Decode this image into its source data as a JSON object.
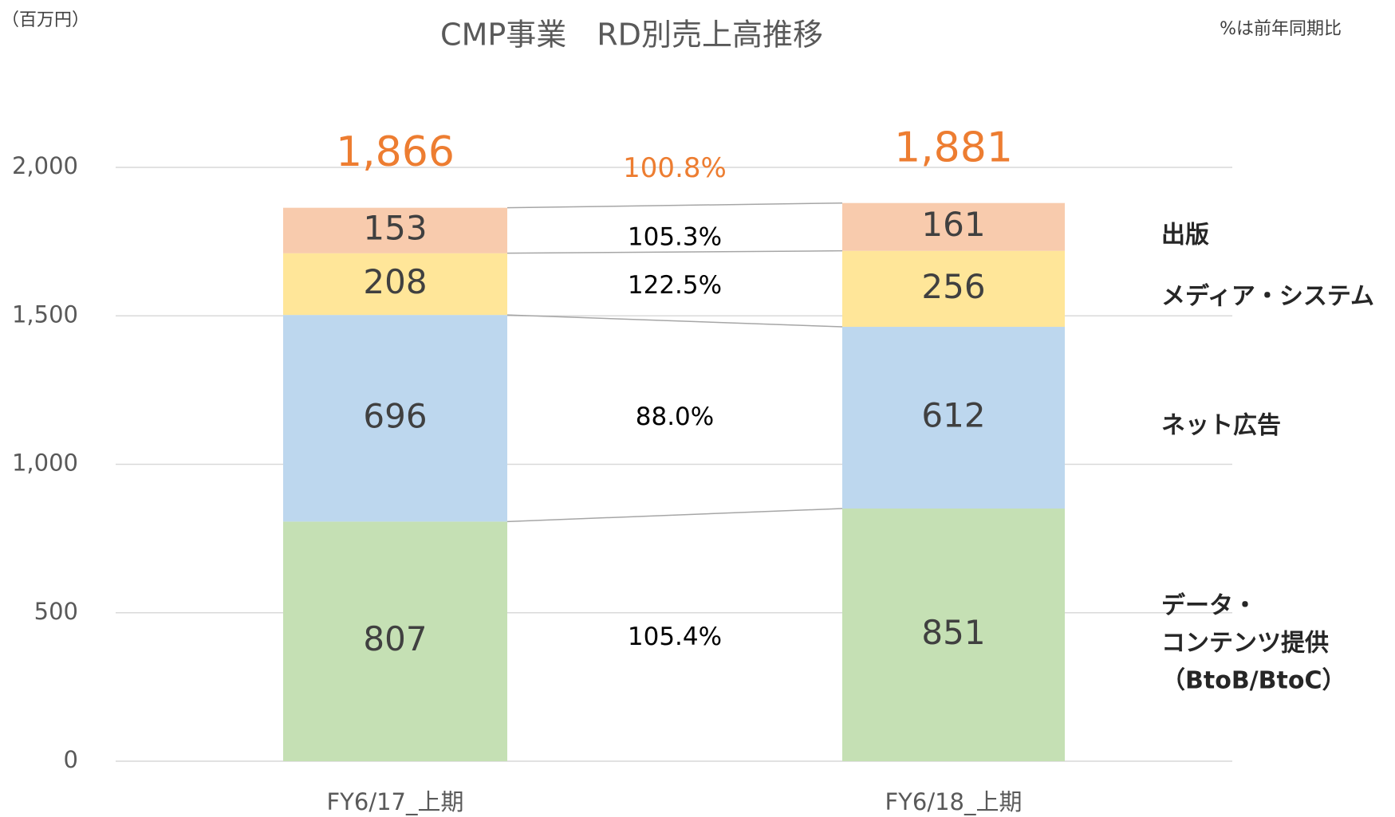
{
  "chart_data": {
    "type": "stacked_bar",
    "title": "CMP事業　RD別売上高推移",
    "unit_label": "（百万円）",
    "note": "%は前年同期比",
    "categories": [
      "FY6/17_上期",
      "FY6/18_上期"
    ],
    "series": [
      {
        "name": "データ・\nコンテンツ提供\n（BtoB/BtoC）",
        "color": "#c5e0b4",
        "values": [
          807,
          851
        ],
        "change_label": "105.4%"
      },
      {
        "name": "ネット広告",
        "color": "#bdd7ee",
        "values": [
          696,
          612
        ],
        "change_label": "88.0%"
      },
      {
        "name": "メディア・システム",
        "color": "#ffe699",
        "values": [
          208,
          256
        ],
        "change_label": "122.5%"
      },
      {
        "name": "出版",
        "color": "#f8cbad",
        "values": [
          153,
          161
        ],
        "change_label": "105.3%"
      }
    ],
    "totals": [
      1866,
      1881
    ],
    "total_labels": [
      "1,866",
      "1,881"
    ],
    "total_change_label": "100.8%",
    "total_color": "#ed7d31",
    "ylim": [
      0,
      2000
    ],
    "yticks": [
      0,
      500,
      {
        "value": 1000,
        "label": "1,000"
      },
      {
        "value": 1500,
        "label": "1,500"
      },
      {
        "value": 2000,
        "label": "2,000"
      }
    ],
    "grid": true
  }
}
